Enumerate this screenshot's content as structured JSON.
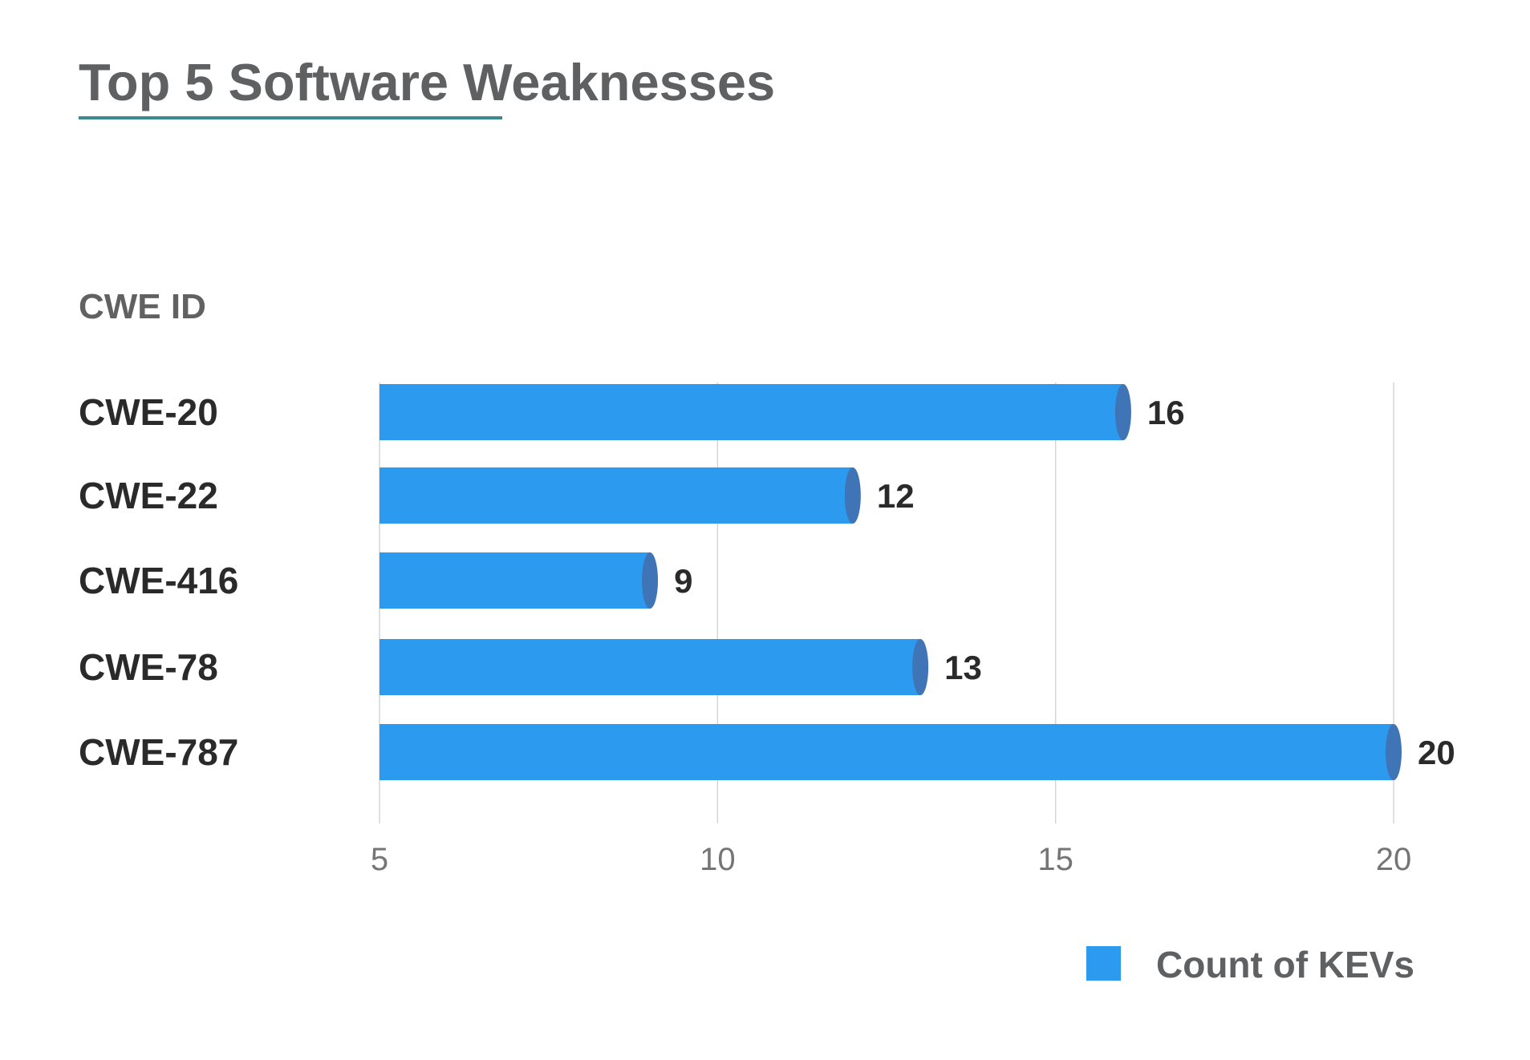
{
  "title": "Top 5 Software Weaknesses",
  "y_axis_title": "CWE ID",
  "colors": {
    "bar": "#2B9AEF",
    "bar_cap": "#3F74B6",
    "title_underline": "#3C8A8E",
    "gridline": "#D6D6D6"
  },
  "chart_data": {
    "type": "bar",
    "orientation": "horizontal",
    "title": "Top 5 Software Weaknesses",
    "ylabel": "CWE ID",
    "xlabel": "",
    "categories": [
      "CWE-20",
      "CWE-22",
      "CWE-416",
      "CWE-78",
      "CWE-787"
    ],
    "series": [
      {
        "name": "Count of KEVs",
        "values": [
          16,
          12,
          9,
          13,
          20
        ]
      }
    ],
    "value_labels": [
      "16",
      "12",
      "9",
      "13",
      "20"
    ],
    "xlim": [
      5,
      20
    ],
    "x_ticks": [
      5,
      10,
      15,
      20
    ],
    "x_tick_labels": [
      "5",
      "10",
      "15",
      "20"
    ],
    "grid": true,
    "legend_position": "bottom-right"
  },
  "legend": {
    "label": "Count of KEVs"
  }
}
